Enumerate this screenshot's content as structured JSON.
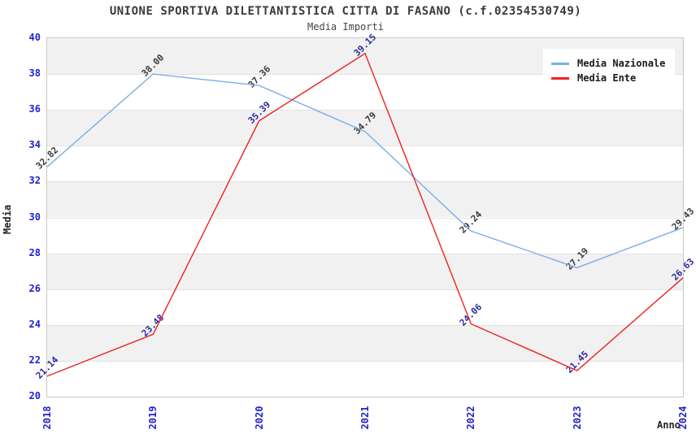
{
  "header": {
    "title": "UNIONE SPORTIVA DILETTANTISTICA CITTA DI FASANO (c.f.02354530749)",
    "subtitle": "Media Importi"
  },
  "chart_data": {
    "type": "line",
    "title": "UNIONE SPORTIVA DILETTANTISTICA CITTA DI FASANO (c.f.02354530749)",
    "subtitle": "Media Importi",
    "xlabel": "Anno",
    "ylabel": "Media",
    "x": [
      2018,
      2019,
      2020,
      2021,
      2022,
      2023,
      2024
    ],
    "series": [
      {
        "name": "Media Nazionale",
        "color": "#7caee6",
        "label_color": "#3a3a3a",
        "values": [
          32.82,
          38.0,
          37.36,
          34.79,
          29.24,
          27.19,
          29.43
        ]
      },
      {
        "name": "Media Ente",
        "color": "#ee2222",
        "label_color": "#2a2a9e",
        "values": [
          21.14,
          23.48,
          35.39,
          39.15,
          24.06,
          21.45,
          26.63
        ]
      }
    ],
    "ylim": [
      20,
      40
    ],
    "ytick_step": 2,
    "yticks": [
      20,
      22,
      24,
      26,
      28,
      30,
      32,
      34,
      36,
      38,
      40
    ],
    "grid": true,
    "band_color": "#f1f1f1",
    "tick_label_color": "#2222cc",
    "legend_position": "top-right"
  }
}
